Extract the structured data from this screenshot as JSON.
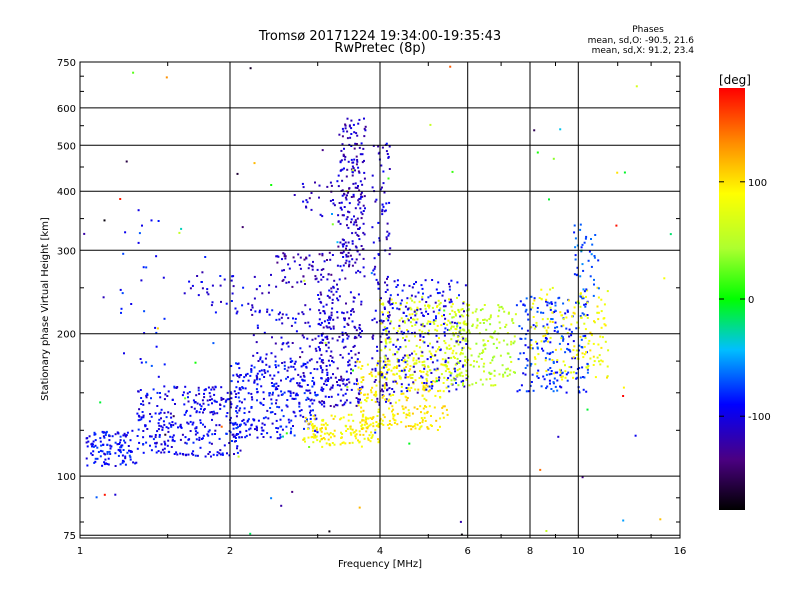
{
  "chart_data": {
    "type": "scatter",
    "title": "Tromsø 20171224 19:34:00-19:35:43",
    "subtitle": "RwPretec (8p)",
    "xlabel": "Frequency [MHz]",
    "ylabel": "Stationary phase Virtual Height [km]",
    "x_scale": "log",
    "y_scale": "log",
    "xlim": [
      1,
      16
    ],
    "ylim": [
      74,
      750
    ],
    "x_ticks": [
      "1",
      "2",
      "4",
      "6",
      "8",
      "10",
      "16"
    ],
    "y_ticks": [
      "75",
      "100",
      "200",
      "300",
      "400",
      "500",
      "600",
      "750"
    ],
    "grid": true,
    "stats": {
      "heading": "Phases",
      "line_o": "mean, sd,O: -90.5, 21.6",
      "line_x": "mean, sd,X:  91.2, 23.4"
    },
    "colorbar": {
      "label": "[deg]",
      "ticks": [
        "100",
        "0",
        "-100"
      ],
      "range": [
        -180,
        180
      ],
      "colormap": "rainbow"
    },
    "clusters": [
      {
        "x": [
          1.03,
          1.3
        ],
        "y": [
          105,
          125
        ],
        "c": -100,
        "n": 120
      },
      {
        "x": [
          1.3,
          2.1
        ],
        "y": [
          110,
          155
        ],
        "c": -105,
        "n": 320
      },
      {
        "x": [
          2.0,
          3.0
        ],
        "y": [
          120,
          175
        ],
        "c": -100,
        "n": 280
      },
      {
        "x": [
          2.2,
          3.2
        ],
        "y": [
          155,
          230
        ],
        "c": -110,
        "n": 120
      },
      {
        "x": [
          3.0,
          3.7
        ],
        "y": [
          140,
          250
        ],
        "c": -115,
        "n": 220
      },
      {
        "x": [
          3.3,
          3.75
        ],
        "y": [
          260,
          570
        ],
        "c": -120,
        "n": 210
      },
      {
        "x": [
          3.85,
          4.2
        ],
        "y": [
          140,
          520
        ],
        "c": -115,
        "n": 120
      },
      {
        "x": [
          2.8,
          4.0
        ],
        "y": [
          115,
          135
        ],
        "c": 95,
        "n": 150
      },
      {
        "x": [
          3.6,
          5.5
        ],
        "y": [
          125,
          175
        ],
        "c": 100,
        "n": 260
      },
      {
        "x": [
          4.0,
          6.0
        ],
        "y": [
          160,
          240
        ],
        "c": 80,
        "n": 260
      },
      {
        "x": [
          4.0,
          6.0
        ],
        "y": [
          150,
          260
        ],
        "c": -105,
        "n": 220
      },
      {
        "x": [
          5.5,
          7.5
        ],
        "y": [
          155,
          230
        ],
        "c": 60,
        "n": 180
      },
      {
        "x": [
          7.5,
          10.5
        ],
        "y": [
          150,
          240
        ],
        "c": -90,
        "n": 200
      },
      {
        "x": [
          8.0,
          11.5
        ],
        "y": [
          160,
          250
        ],
        "c": 90,
        "n": 150
      },
      {
        "x": [
          9.8,
          11.0
        ],
        "y": [
          240,
          340
        ],
        "c": -80,
        "n": 40
      },
      {
        "x": [
          1.2,
          1.5
        ],
        "y": [
          160,
          400
        ],
        "c": -95,
        "n": 30
      },
      {
        "x": [
          1.6,
          2.4
        ],
        "y": [
          220,
          270
        ],
        "c": -110,
        "n": 45
      },
      {
        "x": [
          2.4,
          3.3
        ],
        "y": [
          250,
          300
        ],
        "c": -125,
        "n": 70
      },
      {
        "x": [
          2.8,
          3.3
        ],
        "y": [
          350,
          420
        ],
        "c": -120,
        "n": 25
      },
      {
        "x": [
          1.0,
          16.0
        ],
        "y": [
          75,
          750
        ],
        "c": 0,
        "n": 90,
        "cspread": 180
      }
    ]
  }
}
